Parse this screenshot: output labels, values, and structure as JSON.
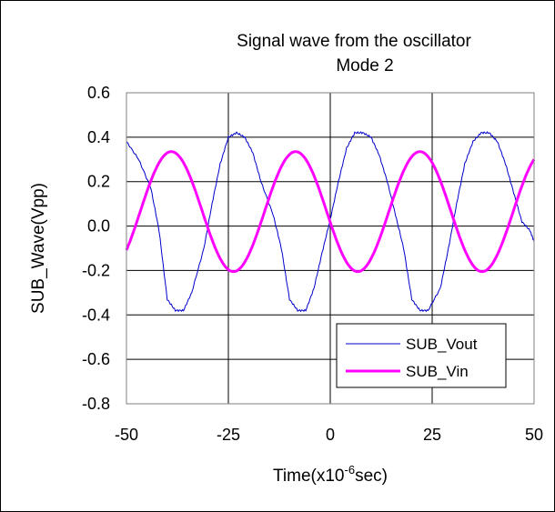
{
  "chart_data": {
    "type": "line",
    "title": [
      "Signal wave from the oscillator",
      "Mode 2"
    ],
    "xlabel": {
      "main": "Time(x10",
      "sup": "-6",
      "tail": "sec)"
    },
    "ylabel": "SUB_Wave(Vpp)",
    "xlim": [
      -50,
      50
    ],
    "ylim": [
      -0.8,
      0.6
    ],
    "xticks": [
      -50,
      -25,
      0,
      25,
      50
    ],
    "yticks": [
      "0.6",
      "0.4",
      "0.2",
      "0.0",
      "-0.2",
      "-0.4",
      "-0.6",
      "-0.8"
    ],
    "ytick_values": [
      0.6,
      0.4,
      0.2,
      0.0,
      -0.2,
      -0.4,
      -0.6,
      -0.8
    ],
    "grid": true,
    "legend_position": "bottom-right",
    "series": [
      {
        "name": "SUB_Vout",
        "color": "#0000cc",
        "x": [
          -50,
          -47,
          -44,
          -42,
          -40,
          -38,
          -36,
          -34,
          -31,
          -29,
          -27,
          -25,
          -23,
          -21,
          -19,
          -17,
          -14,
          -12,
          -10,
          -8,
          -6,
          -4,
          -2,
          0,
          2,
          4,
          6,
          8,
          10,
          12,
          14,
          16,
          18,
          20,
          22,
          24,
          27,
          29,
          31,
          33,
          35,
          37,
          39,
          41,
          43,
          45,
          47,
          49,
          50
        ],
        "y": [
          0.38,
          0.3,
          0.17,
          -0.02,
          -0.33,
          -0.38,
          -0.38,
          -0.3,
          -0.1,
          0.1,
          0.28,
          0.4,
          0.42,
          0.4,
          0.33,
          0.2,
          0.05,
          -0.1,
          -0.33,
          -0.38,
          -0.38,
          -0.28,
          -0.12,
          0.03,
          0.2,
          0.35,
          0.42,
          0.42,
          0.4,
          0.32,
          0.2,
          0.05,
          -0.1,
          -0.33,
          -0.38,
          -0.38,
          -0.28,
          -0.1,
          0.1,
          0.28,
          0.38,
          0.42,
          0.42,
          0.38,
          0.28,
          0.15,
          0.02,
          -0.02,
          -0.07
        ]
      },
      {
        "name": "SUB_Vin",
        "color": "#ff00ff",
        "amplitude": 0.27,
        "offset": 0.065,
        "period": 30.5,
        "peak_at": -39,
        "x_range": [
          -50,
          50
        ]
      }
    ]
  }
}
